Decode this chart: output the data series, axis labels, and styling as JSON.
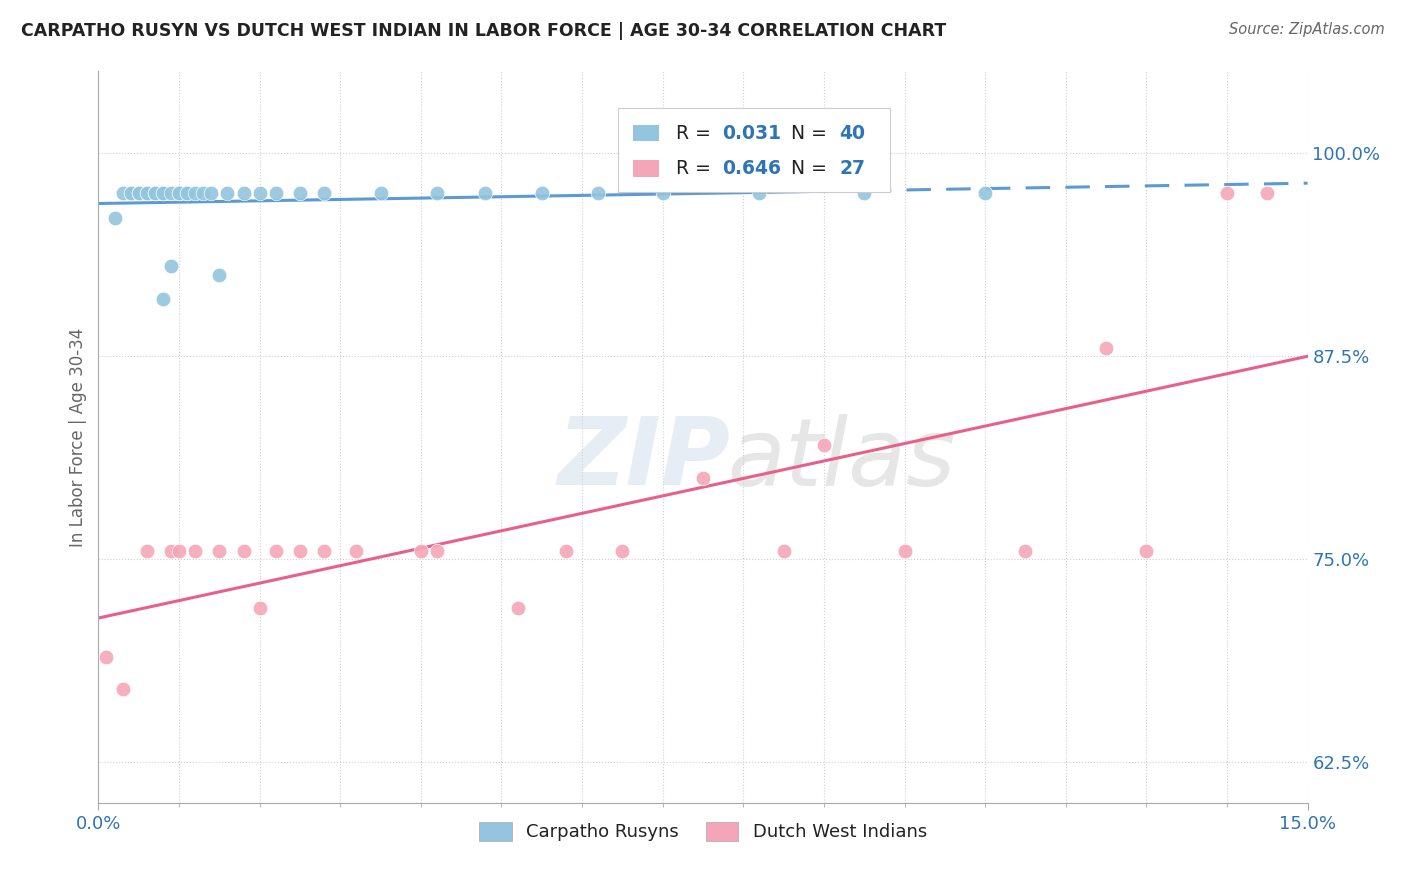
{
  "title": "CARPATHO RUSYN VS DUTCH WEST INDIAN IN LABOR FORCE | AGE 30-34 CORRELATION CHART",
  "source_text": "Source: ZipAtlas.com",
  "ylabel_ticks": [
    "62.5%",
    "75.0%",
    "87.5%",
    "100.0%"
  ],
  "ylabel_label": "In Labor Force | Age 30-34",
  "blue_color": "#92c5de",
  "pink_color": "#f4a6b8",
  "blue_line_color": "#5b9bd5",
  "pink_line_color": "#e8608a",
  "text_color_blue": "#2e75b6",
  "grid_color": "#d0d0d0",
  "blue_x": [
    0.002,
    0.003,
    0.004,
    0.004,
    0.005,
    0.005,
    0.005,
    0.006,
    0.006,
    0.007,
    0.007,
    0.007,
    0.008,
    0.008,
    0.008,
    0.009,
    0.009,
    0.01,
    0.01,
    0.011,
    0.011,
    0.012,
    0.013,
    0.014,
    0.015,
    0.016,
    0.018,
    0.02,
    0.022,
    0.025,
    0.028,
    0.035,
    0.042,
    0.048,
    0.055,
    0.062,
    0.07,
    0.082,
    0.095,
    0.11
  ],
  "blue_y": [
    0.96,
    0.975,
    0.975,
    0.975,
    0.975,
    0.975,
    0.975,
    0.975,
    0.975,
    0.975,
    0.975,
    0.975,
    0.91,
    0.975,
    0.975,
    0.93,
    0.975,
    0.975,
    0.975,
    0.975,
    0.975,
    0.975,
    0.975,
    0.975,
    0.925,
    0.975,
    0.975,
    0.975,
    0.975,
    0.975,
    0.975,
    0.975,
    0.975,
    0.975,
    0.975,
    0.975,
    0.975,
    0.975,
    0.975,
    0.975
  ],
  "pink_x": [
    0.001,
    0.003,
    0.006,
    0.009,
    0.01,
    0.012,
    0.015,
    0.018,
    0.02,
    0.022,
    0.025,
    0.028,
    0.032,
    0.04,
    0.042,
    0.052,
    0.058,
    0.065,
    0.075,
    0.085,
    0.09,
    0.1,
    0.115,
    0.125,
    0.13,
    0.14,
    0.145
  ],
  "pink_y": [
    0.69,
    0.67,
    0.755,
    0.755,
    0.755,
    0.755,
    0.755,
    0.755,
    0.72,
    0.755,
    0.755,
    0.755,
    0.755,
    0.755,
    0.755,
    0.72,
    0.755,
    0.755,
    0.8,
    0.755,
    0.82,
    0.755,
    0.755,
    0.88,
    0.755,
    0.975,
    0.975
  ],
  "blue_r": 0.031,
  "blue_n": 40,
  "pink_r": 0.646,
  "pink_n": 27,
  "xlim": [
    0.0,
    0.15
  ],
  "ylim": [
    0.6,
    1.05
  ],
  "yticks": [
    0.625,
    0.75,
    0.875,
    1.0
  ],
  "solid_cutoff": 0.095
}
